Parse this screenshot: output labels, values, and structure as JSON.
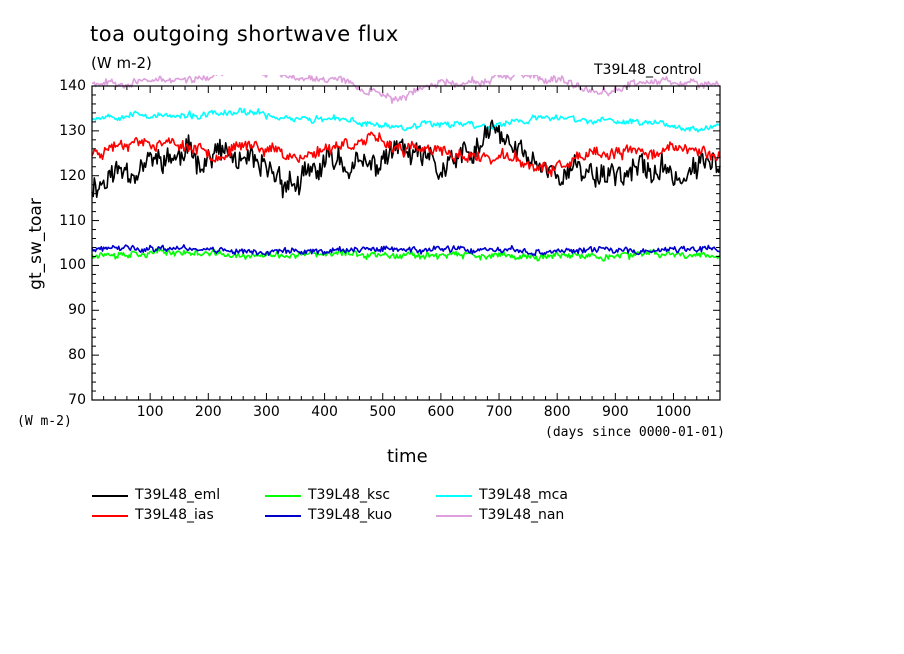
{
  "chart_data": {
    "type": "line",
    "title": "toa outgoing shortwave flux",
    "units": "(W m-2)",
    "run_label": "T39L48_control",
    "ylabel": "gt_sw_toar",
    "y_units_label": "(W m-2)",
    "xlabel": "time",
    "x_units_label": "(days since 0000-01-01)",
    "xlim": [
      0,
      1080
    ],
    "ylim": [
      70,
      140
    ],
    "xticks": [
      100,
      200,
      300,
      400,
      500,
      600,
      700,
      800,
      900,
      1000
    ],
    "yticks": [
      70,
      80,
      90,
      100,
      110,
      120,
      130,
      140
    ],
    "grid": false,
    "legend_position": "bottom",
    "series": [
      {
        "name": "T39L48_eml",
        "color": "#000000",
        "mean": 120,
        "amp": 4.5,
        "noise": 3.5,
        "seed": 11,
        "anchors": [
          [
            0,
            118
          ],
          [
            60,
            122
          ],
          [
            150,
            124
          ],
          [
            220,
            125
          ],
          [
            280,
            121
          ],
          [
            360,
            118
          ],
          [
            420,
            124
          ],
          [
            480,
            121
          ],
          [
            520,
            126
          ],
          [
            600,
            121
          ],
          [
            660,
            125
          ],
          [
            690,
            130
          ],
          [
            720,
            126
          ],
          [
            800,
            121
          ],
          [
            880,
            121
          ],
          [
            960,
            121
          ],
          [
            1020,
            120
          ],
          [
            1080,
            124
          ]
        ]
      },
      {
        "name": "T39L48_ias",
        "color": "#ff0000",
        "mean": 125,
        "amp": 2,
        "noise": 1.6,
        "seed": 23,
        "anchors": [
          [
            0,
            125
          ],
          [
            60,
            128
          ],
          [
            150,
            127
          ],
          [
            220,
            125
          ],
          [
            280,
            127
          ],
          [
            360,
            124
          ],
          [
            420,
            127
          ],
          [
            480,
            128
          ],
          [
            540,
            126
          ],
          [
            600,
            125
          ],
          [
            680,
            124
          ],
          [
            720,
            124
          ],
          [
            780,
            121
          ],
          [
            850,
            124
          ],
          [
            920,
            125
          ],
          [
            1000,
            126
          ],
          [
            1080,
            125
          ]
        ]
      },
      {
        "name": "T39L48_ksc",
        "color": "#00ff00",
        "mean": 102.5,
        "amp": 0.9,
        "noise": 1.0,
        "seed": 37,
        "anchors": [
          [
            0,
            102.5
          ],
          [
            150,
            103
          ],
          [
            270,
            102
          ],
          [
            400,
            102.5
          ],
          [
            550,
            102.5
          ],
          [
            700,
            102
          ],
          [
            850,
            102
          ],
          [
            1000,
            102.5
          ],
          [
            1080,
            102.5
          ]
        ]
      },
      {
        "name": "T39L48_kuo",
        "color": "#0000cc",
        "mean": 103.5,
        "amp": 0.9,
        "noise": 0.9,
        "seed": 41,
        "anchors": [
          [
            0,
            103.5
          ],
          [
            150,
            104
          ],
          [
            300,
            103
          ],
          [
            450,
            103.5
          ],
          [
            600,
            103.5
          ],
          [
            750,
            103
          ],
          [
            900,
            103.5
          ],
          [
            1080,
            103.5
          ]
        ]
      },
      {
        "name": "T39L48_mca",
        "color": "#00ffff",
        "mean": 132,
        "amp": 1.3,
        "noise": 0.8,
        "seed": 53,
        "anchors": [
          [
            0,
            133
          ],
          [
            60,
            134
          ],
          [
            150,
            133
          ],
          [
            260,
            134
          ],
          [
            340,
            133
          ],
          [
            450,
            132
          ],
          [
            520,
            131
          ],
          [
            600,
            132
          ],
          [
            680,
            131
          ],
          [
            780,
            133
          ],
          [
            880,
            132
          ],
          [
            960,
            132
          ],
          [
            1020,
            131
          ],
          [
            1080,
            131
          ]
        ]
      },
      {
        "name": "T39L48_nan",
        "color": "#dda0dd",
        "mean": 141,
        "amp": 1.5,
        "noise": 0.9,
        "seed": 67,
        "anchors": [
          [
            0,
            141
          ],
          [
            100,
            141
          ],
          [
            200,
            142
          ],
          [
            260,
            144
          ],
          [
            340,
            142
          ],
          [
            420,
            142
          ],
          [
            520,
            137
          ],
          [
            600,
            141
          ],
          [
            660,
            141
          ],
          [
            760,
            142
          ],
          [
            860,
            139
          ],
          [
            960,
            141
          ],
          [
            1080,
            141
          ]
        ]
      }
    ]
  }
}
